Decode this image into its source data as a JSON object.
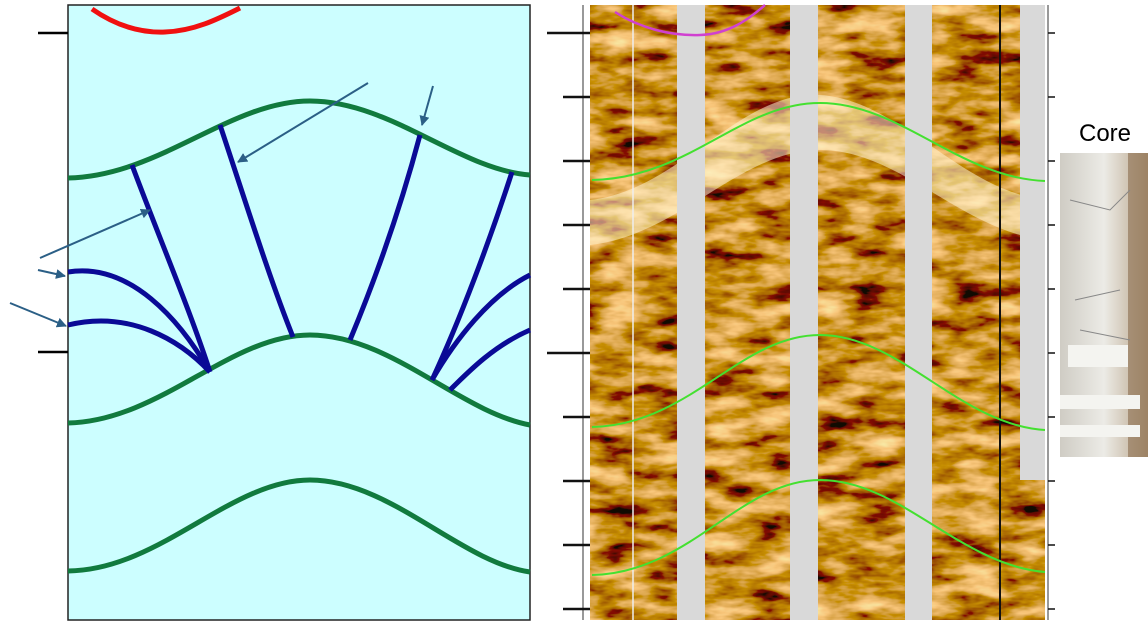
{
  "core_label": "Core"
}
